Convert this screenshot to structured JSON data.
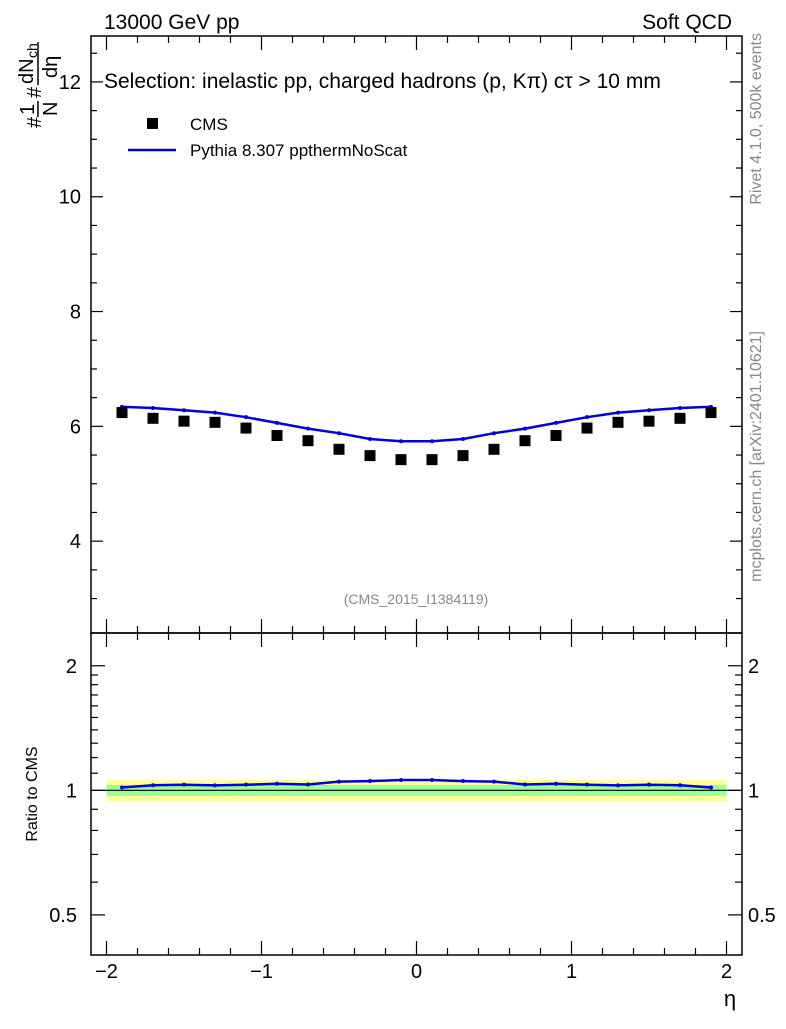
{
  "header": {
    "energy_label": "13000 GeV pp",
    "category_label": "Soft QCD"
  },
  "selection_text": "Selection: inelastic pp, charged hadrons (p, Kπ) cτ > 10 mm",
  "legend": {
    "cms_label": "CMS",
    "mc_label": "Pythia 8.307 ppthermNoScat"
  },
  "side_labels": {
    "rivet": "Rivet 4.1.0,  500k events",
    "mcplots": "mcplots.cern.ch [arXiv:2401.10621]"
  },
  "analysis_id": "(CMS_2015_I1384119)",
  "colors": {
    "data": "#000000",
    "mc": "#0000dd",
    "band_inner": "#99ff99",
    "band_outer": "#ffff99"
  },
  "chart_data": [
    {
      "type": "scatter",
      "panel": "main",
      "ylabel_parts": {
        "hash1": "#",
        "num1": "1",
        "den1": "N",
        "hash2": "#",
        "num2": "dN",
        "sub2": "ch",
        "den2": "dη"
      },
      "ylim": [
        2.4,
        12.8
      ],
      "xlim": [
        -2.1,
        2.1
      ],
      "yticks": [
        4,
        6,
        8,
        10,
        12
      ],
      "ytick_labels": [
        "4",
        "6",
        "8",
        "10",
        "12"
      ],
      "x": [
        -1.9,
        -1.7,
        -1.5,
        -1.3,
        -1.1,
        -0.9,
        -0.7,
        -0.5,
        -0.3,
        -0.1,
        0.1,
        0.3,
        0.5,
        0.7,
        0.9,
        1.1,
        1.3,
        1.5,
        1.7,
        1.9
      ],
      "series": [
        {
          "name": "CMS",
          "style": "markers",
          "values": [
            6.24,
            6.14,
            6.09,
            6.07,
            5.97,
            5.84,
            5.75,
            5.6,
            5.49,
            5.42,
            5.42,
            5.49,
            5.6,
            5.75,
            5.84,
            5.97,
            6.07,
            6.09,
            6.14,
            6.24
          ]
        },
        {
          "name": "Pythia 8.307 ppthermNoScat",
          "style": "line",
          "values": [
            6.34,
            6.32,
            6.28,
            6.24,
            6.16,
            6.06,
            5.96,
            5.88,
            5.78,
            5.74,
            5.74,
            5.78,
            5.88,
            5.96,
            6.06,
            6.16,
            6.24,
            6.28,
            6.32,
            6.34
          ]
        }
      ]
    },
    {
      "type": "line",
      "panel": "ratio",
      "ylabel": "Ratio to CMS",
      "yscale": "log",
      "ylim": [
        0.4,
        2.4
      ],
      "xlim": [
        -2.1,
        2.1
      ],
      "xlabel": "η",
      "yticks": [
        0.5,
        1,
        2
      ],
      "ytick_labels": [
        "0.5",
        "1",
        "2"
      ],
      "xticks": [
        -2,
        -1,
        0,
        1,
        2
      ],
      "xtick_labels": [
        "−2",
        "−1",
        "0",
        "1",
        "2"
      ],
      "x": [
        -1.9,
        -1.7,
        -1.5,
        -1.3,
        -1.1,
        -0.9,
        -0.7,
        -0.5,
        -0.3,
        -0.1,
        0.1,
        0.3,
        0.5,
        0.7,
        0.9,
        1.1,
        1.3,
        1.5,
        1.7,
        1.9
      ],
      "reference": 1.0,
      "band_inner": [
        0.97,
        1.03
      ],
      "band_outer": [
        0.94,
        1.06
      ],
      "series": [
        {
          "name": "Pythia 8.307 ppthermNoScat",
          "values": [
            1.016,
            1.029,
            1.032,
            1.028,
            1.032,
            1.037,
            1.033,
            1.05,
            1.053,
            1.059,
            1.059,
            1.053,
            1.05,
            1.033,
            1.037,
            1.032,
            1.028,
            1.032,
            1.029,
            1.016
          ]
        }
      ]
    }
  ]
}
